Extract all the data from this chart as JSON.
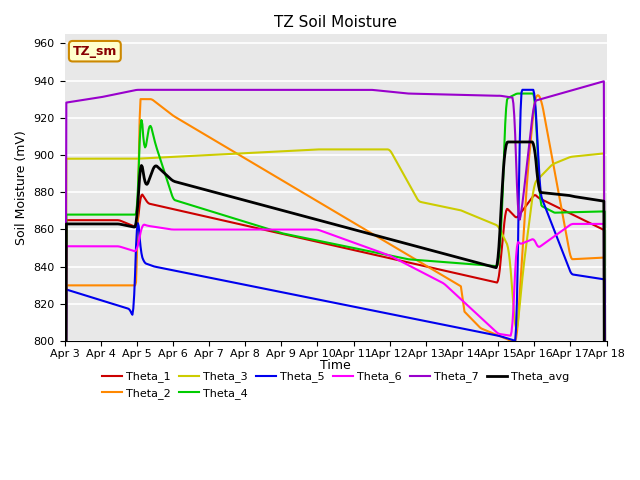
{
  "title": "TZ Soil Moisture",
  "ylabel": "Soil Moisture (mV)",
  "xlabel": "Time",
  "ylim": [
    800,
    965
  ],
  "xlim": [
    0,
    15
  ],
  "x_tick_labels": [
    "Apr 3",
    "Apr 4",
    "Apr 5",
    "Apr 6",
    "Apr 7",
    "Apr 8",
    "Apr 9",
    "Apr 10",
    "Apr 11",
    "Apr 12",
    "Apr 13",
    "Apr 14",
    "Apr 15",
    "Apr 16",
    "Apr 17",
    "Apr 18"
  ],
  "x_tick_positions": [
    0,
    1,
    2,
    3,
    4,
    5,
    6,
    7,
    8,
    9,
    10,
    11,
    12,
    13,
    14,
    15
  ],
  "yticks": [
    800,
    820,
    840,
    860,
    880,
    900,
    920,
    940,
    960
  ],
  "line_colors": {
    "Theta_1": "#cc0000",
    "Theta_2": "#ff8800",
    "Theta_3": "#cccc00",
    "Theta_4": "#00cc00",
    "Theta_5": "#0000ee",
    "Theta_6": "#ff00ff",
    "Theta_7": "#9900cc",
    "Theta_avg": "#000000"
  },
  "bg_color": "#e8e8e8",
  "label_box_color": "#ffffcc",
  "label_text_color": "#880000",
  "label_box_edge": "#cc8800",
  "title_fontsize": 11,
  "label_fontsize": 9,
  "tick_fontsize": 8
}
